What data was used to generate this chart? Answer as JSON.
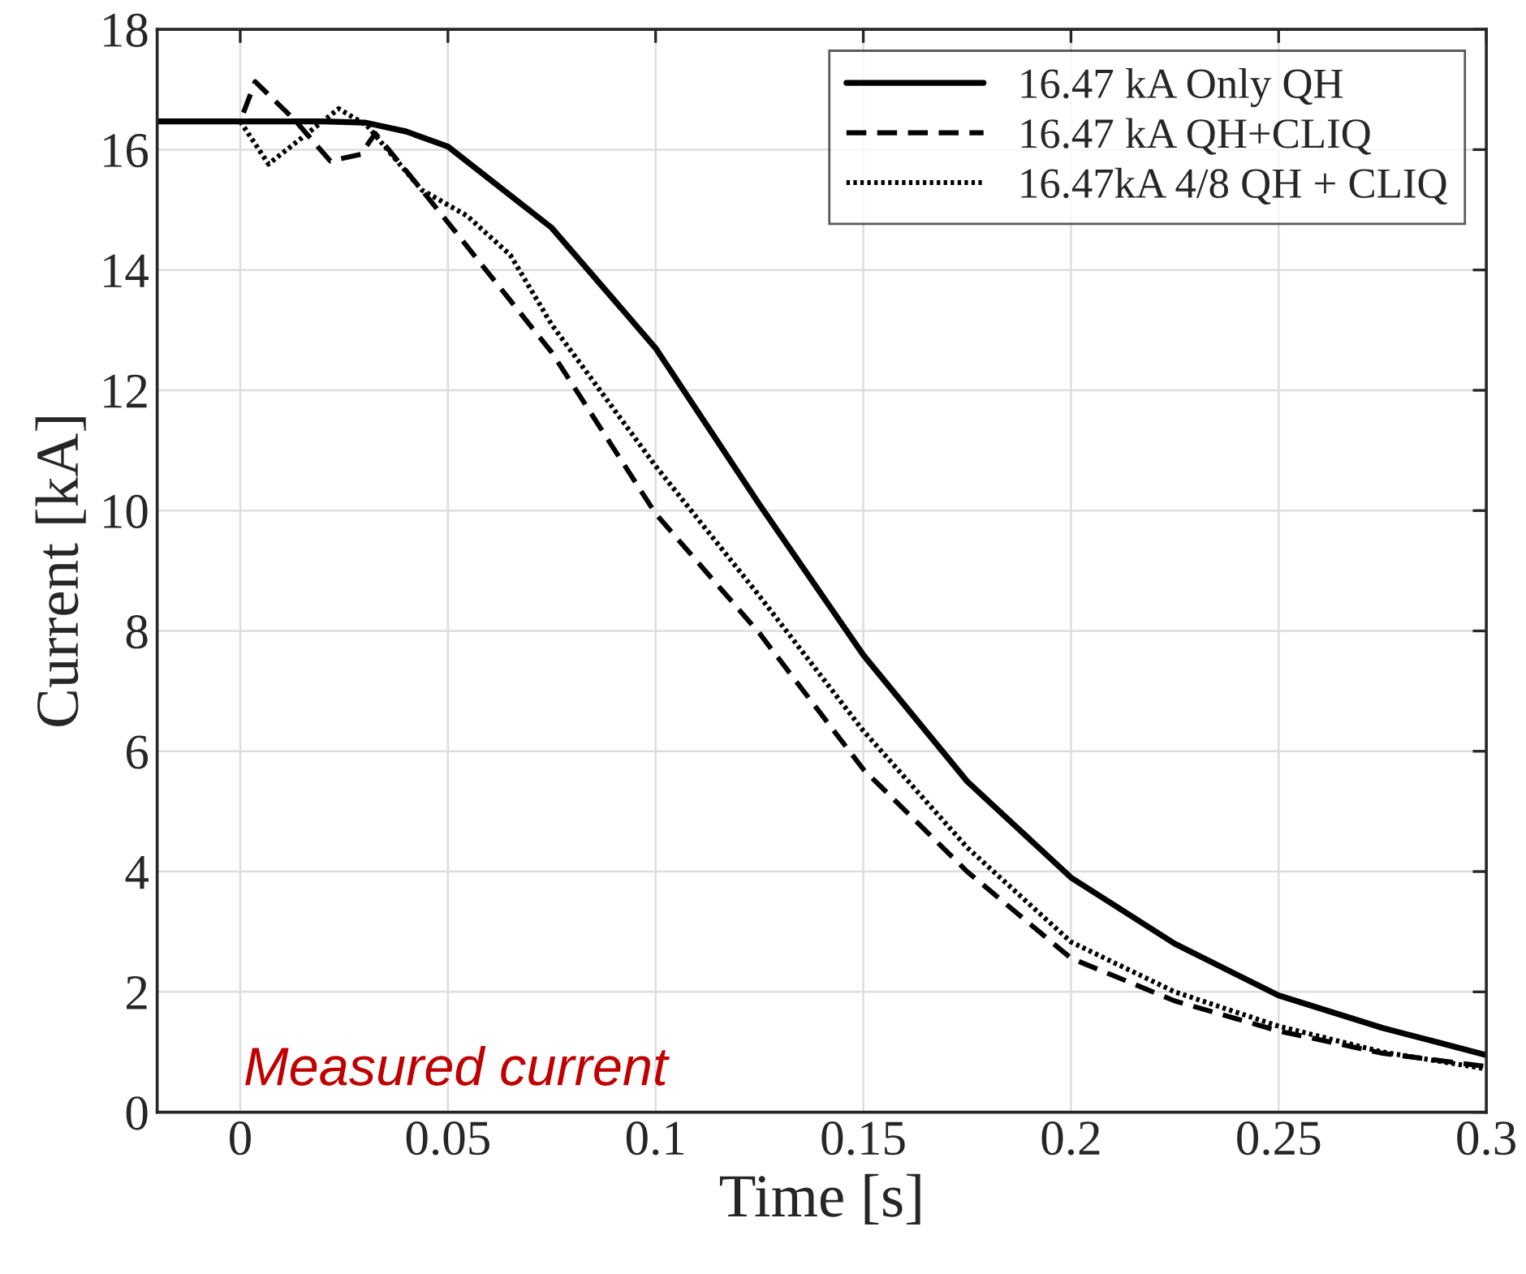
{
  "chart_data": {
    "type": "line",
    "xlabel": "Time [s]",
    "ylabel": "Current [kA]",
    "xlim": [
      -0.02,
      0.3
    ],
    "xticks": [
      0,
      0.05,
      0.1,
      0.15,
      0.2,
      0.25,
      0.3
    ],
    "ylim": [
      0,
      18
    ],
    "yticks": [
      0,
      2,
      4,
      6,
      8,
      10,
      12,
      14,
      16,
      18
    ],
    "grid": true,
    "legend": "top right",
    "marker": "none",
    "annotations": [
      "Measured current"
    ],
    "series": [
      {
        "name": "16.47 kA Only QH",
        "color": "#000000",
        "line_style": "solid",
        "x": [
          -0.02,
          0,
          0.02,
          0.03,
          0.04,
          0.05,
          0.075,
          0.1,
          0.125,
          0.15,
          0.175,
          0.2,
          0.225,
          0.25,
          0.275,
          0.3
        ],
        "values": [
          16.47,
          16.47,
          16.47,
          16.45,
          16.3,
          16.05,
          14.7,
          12.7,
          10.1,
          7.6,
          5.5,
          3.9,
          2.8,
          1.94,
          1.4,
          0.95
        ]
      },
      {
        "name": "16.47 kA QH+CLIQ",
        "color": "#000000",
        "line_style": "dashed",
        "x": [
          -0.02,
          0,
          0.0036,
          0.013,
          0.0217,
          0.029,
          0.0325,
          0.0437,
          0.05,
          0.075,
          0.1,
          0.125,
          0.15,
          0.175,
          0.2,
          0.225,
          0.25,
          0.275,
          0.3
        ],
        "values": [
          16.47,
          16.47,
          17.13,
          16.5,
          15.81,
          15.92,
          16.27,
          15.33,
          14.79,
          12.63,
          9.95,
          7.96,
          5.7,
          4.0,
          2.56,
          1.85,
          1.35,
          0.98,
          0.76
        ]
      },
      {
        "name": "16.47kA 4/8 QH + CLIQ",
        "color": "#000000",
        "line_style": "dotted",
        "x": [
          -0.02,
          0,
          0.0068,
          0.0237,
          0.0305,
          0.0437,
          0.0546,
          0.065,
          0.075,
          0.1,
          0.125,
          0.15,
          0.175,
          0.2,
          0.225,
          0.25,
          0.275,
          0.3
        ],
        "values": [
          16.47,
          16.47,
          15.76,
          16.68,
          16.4,
          15.33,
          14.9,
          14.25,
          13.09,
          10.74,
          8.58,
          6.34,
          4.4,
          2.83,
          2.0,
          1.43,
          1.0,
          0.72
        ]
      }
    ]
  }
}
